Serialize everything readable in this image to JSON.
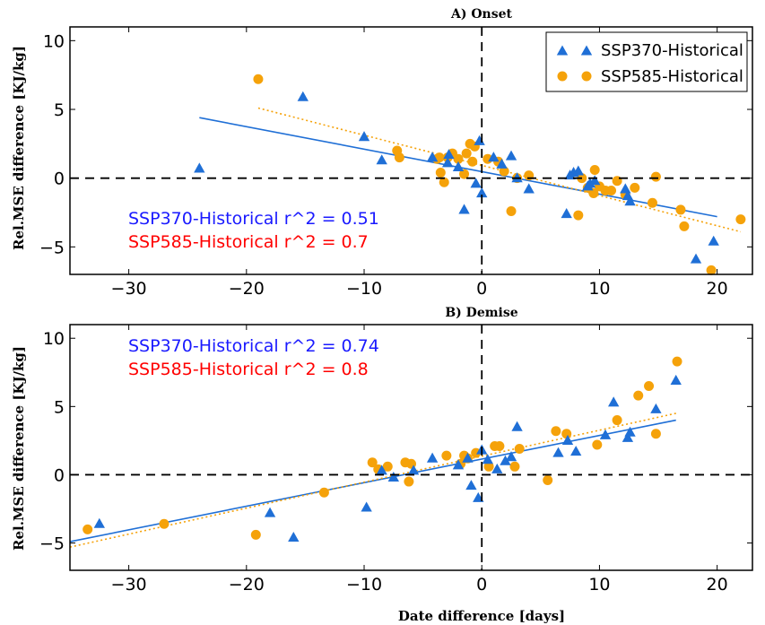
{
  "colors": {
    "ssp370": "#1f6fd6",
    "ssp585": "#f5a20a",
    "ann370": "#1a1aff",
    "ann585": "#ff0000"
  },
  "xlabel": "Date difference [days]",
  "chart_data": [
    {
      "type": "scatter",
      "title": "A) Onset",
      "xlabel": "",
      "ylabel": "Rel.MSE difference [KJ/kg]",
      "xlim": [
        -35,
        23
      ],
      "ylim": [
        -7,
        11
      ],
      "xticks": [
        -30,
        -20,
        -10,
        0,
        10,
        20
      ],
      "yticks": [
        -5,
        0,
        5,
        10
      ],
      "reference_lines": {
        "x": 0,
        "y": 0
      },
      "legend": {
        "placement": "top-right",
        "entries": [
          "SSP370-Historical",
          "SSP585-Historical"
        ]
      },
      "annotations": [
        "SSP370-Historical r^2 = 0.51",
        "SSP585-Historical r^2 = 0.7"
      ],
      "series": [
        {
          "name": "SSP370-Historical",
          "marker": "triangle",
          "fit": {
            "x": [
              -24,
              20
            ],
            "y": [
              4.4,
              -2.8
            ]
          },
          "points": [
            [
              -24,
              0.7
            ],
            [
              -15.2,
              5.9
            ],
            [
              -10,
              3.0
            ],
            [
              -8.5,
              1.3
            ],
            [
              -4.2,
              1.5
            ],
            [
              -2.9,
              1.1
            ],
            [
              -2.8,
              1.7
            ],
            [
              -2.0,
              0.8
            ],
            [
              -1.5,
              -2.3
            ],
            [
              -0.5,
              -0.4
            ],
            [
              -0.2,
              2.7
            ],
            [
              0,
              -1.1
            ],
            [
              1.0,
              1.5
            ],
            [
              1.7,
              1.0
            ],
            [
              2.5,
              1.6
            ],
            [
              3.0,
              0.0
            ],
            [
              4,
              -0.8
            ],
            [
              7.2,
              -2.6
            ],
            [
              7.5,
              0.2
            ],
            [
              7.8,
              0.4
            ],
            [
              8.2,
              0.5
            ],
            [
              9.0,
              -0.6
            ],
            [
              9.2,
              -0.4
            ],
            [
              9.6,
              -0.2
            ],
            [
              12.2,
              -0.8
            ],
            [
              12.4,
              -1.3
            ],
            [
              12.6,
              -1.7
            ],
            [
              18.2,
              -5.9
            ],
            [
              19.7,
              -4.6
            ]
          ]
        },
        {
          "name": "SSP585-Historical",
          "marker": "circle",
          "fit": {
            "x": [
              -19,
              22
            ],
            "y": [
              5.1,
              -3.9
            ]
          },
          "points": [
            [
              -19,
              7.2
            ],
            [
              -7.2,
              2.0
            ],
            [
              -7,
              1.5
            ],
            [
              -3.8,
              1.4
            ],
            [
              -3.6,
              1.5
            ],
            [
              -3.5,
              0.4
            ],
            [
              -3.2,
              -0.3
            ],
            [
              -2.9,
              1.5
            ],
            [
              -2.5,
              1.8
            ],
            [
              -2.0,
              1.4
            ],
            [
              -1.5,
              0.3
            ],
            [
              -1.3,
              1.8
            ],
            [
              -1.0,
              2.5
            ],
            [
              -0.8,
              1.2
            ],
            [
              -0.6,
              2.3
            ],
            [
              0.5,
              1.4
            ],
            [
              1.4,
              1.2
            ],
            [
              1.9,
              0.5
            ],
            [
              2.5,
              -2.4
            ],
            [
              3.0,
              0.0
            ],
            [
              4,
              0.2
            ],
            [
              8.2,
              -2.7
            ],
            [
              8.5,
              0.0
            ],
            [
              9.0,
              -0.7
            ],
            [
              9.5,
              -1.1
            ],
            [
              9.6,
              0.6
            ],
            [
              10.0,
              -0.6
            ],
            [
              10.5,
              -0.9
            ],
            [
              11.0,
              -0.9
            ],
            [
              11.5,
              -0.2
            ],
            [
              12.2,
              -1.2
            ],
            [
              13.0,
              -0.7
            ],
            [
              14.5,
              -1.8
            ],
            [
              14.8,
              0.1
            ],
            [
              16.9,
              -2.3
            ],
            [
              17.2,
              -3.5
            ],
            [
              19.5,
              -6.7
            ],
            [
              22,
              -3.0
            ]
          ]
        }
      ]
    },
    {
      "type": "scatter",
      "title": "B) Demise",
      "xlabel": "Date difference [days]",
      "ylabel": "Rel.MSE difference [KJ/kg]",
      "xlim": [
        -35,
        23
      ],
      "ylim": [
        -7,
        11
      ],
      "xticks": [
        -30,
        -20,
        -10,
        0,
        10,
        20
      ],
      "yticks": [
        -5,
        0,
        5,
        10
      ],
      "reference_lines": {
        "x": 0,
        "y": 0
      },
      "annotations": [
        "SSP370-Historical r^2 = 0.74",
        "SSP585-Historical r^2 = 0.8"
      ],
      "series": [
        {
          "name": "SSP370-Historical",
          "marker": "triangle",
          "fit": {
            "x": [
              -35,
              16.5
            ],
            "y": [
              -4.9,
              4.0
            ]
          },
          "points": [
            [
              -32.5,
              -3.6
            ],
            [
              -18,
              -2.8
            ],
            [
              -16,
              -4.6
            ],
            [
              -9.8,
              -2.4
            ],
            [
              -8.5,
              0.3
            ],
            [
              -7.5,
              -0.2
            ],
            [
              -5.8,
              0.3
            ],
            [
              -4.2,
              1.2
            ],
            [
              -2.0,
              0.7
            ],
            [
              -1.2,
              1.2
            ],
            [
              -0.9,
              -0.8
            ],
            [
              -0.3,
              -1.7
            ],
            [
              0,
              1.8
            ],
            [
              0.5,
              1.1
            ],
            [
              1.3,
              0.4
            ],
            [
              2.0,
              1.0
            ],
            [
              2.5,
              1.3
            ],
            [
              3.0,
              3.5
            ],
            [
              6.5,
              1.6
            ],
            [
              7.3,
              2.5
            ],
            [
              8.0,
              1.7
            ],
            [
              10.5,
              2.9
            ],
            [
              11.2,
              5.3
            ],
            [
              12.4,
              2.7
            ],
            [
              12.6,
              3.1
            ],
            [
              14.8,
              4.8
            ],
            [
              16.5,
              6.9
            ]
          ]
        },
        {
          "name": "SSP585-Historical",
          "marker": "circle",
          "fit": {
            "x": [
              -35,
              16.5
            ],
            "y": [
              -5.3,
              4.5
            ]
          },
          "points": [
            [
              -33.5,
              -4.0
            ],
            [
              -27,
              -3.6
            ],
            [
              -19.2,
              -4.4
            ],
            [
              -13.4,
              -1.3
            ],
            [
              -9.3,
              0.9
            ],
            [
              -8.8,
              0.4
            ],
            [
              -8,
              0.6
            ],
            [
              -6.5,
              0.9
            ],
            [
              -6.2,
              -0.5
            ],
            [
              -6.0,
              0.8
            ],
            [
              -3.0,
              1.4
            ],
            [
              -1.8,
              0.8
            ],
            [
              -1.5,
              1.4
            ],
            [
              -1.2,
              1.2
            ],
            [
              -0.5,
              1.6
            ],
            [
              0.6,
              0.6
            ],
            [
              1.1,
              2.1
            ],
            [
              1.5,
              2.1
            ],
            [
              2.8,
              0.6
            ],
            [
              3.2,
              1.9
            ],
            [
              5.6,
              -0.4
            ],
            [
              6.3,
              3.2
            ],
            [
              7.2,
              3.0
            ],
            [
              9.8,
              2.2
            ],
            [
              11.5,
              4.0
            ],
            [
              13.3,
              5.8
            ],
            [
              14.2,
              6.5
            ],
            [
              14.8,
              3.0
            ],
            [
              16.6,
              8.3
            ]
          ]
        }
      ]
    }
  ]
}
